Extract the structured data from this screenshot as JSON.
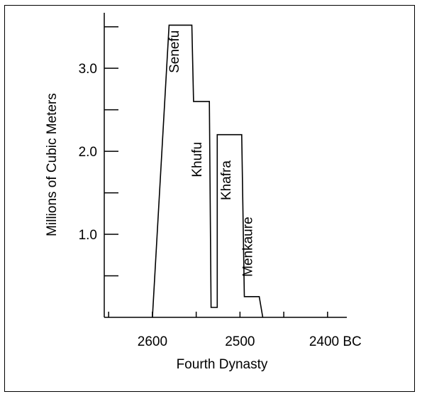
{
  "chart_data": {
    "type": "line",
    "xlabel": "Fourth Dynasty",
    "ylabel": "Millions of Cubic Meters",
    "x_axis": {
      "direction": "reversed",
      "xlim": [
        2655,
        2378
      ],
      "ticks": [
        2650,
        2600,
        2550,
        2500,
        2450,
        2400
      ],
      "tick_labels": [
        {
          "value": 2600,
          "text": "2600"
        },
        {
          "value": 2500,
          "text": "2500"
        },
        {
          "value": 2400,
          "text": "2400 BC"
        }
      ]
    },
    "y_axis": {
      "ylim": [
        0,
        3.6
      ],
      "ticks": [
        0.5,
        1.0,
        1.5,
        2.0,
        2.5,
        3.0,
        3.5
      ],
      "tick_labels": [
        {
          "value": 1.0,
          "text": "1.0"
        },
        {
          "value": 2.0,
          "text": "2.0"
        },
        {
          "value": 3.0,
          "text": "3.0"
        }
      ]
    },
    "series": [
      {
        "points": [
          {
            "x": 2600,
            "y": 0.0
          },
          {
            "x": 2581,
            "y": 3.52
          },
          {
            "x": 2555,
            "y": 3.52
          },
          {
            "x": 2553,
            "y": 2.6
          },
          {
            "x": 2535,
            "y": 2.6
          },
          {
            "x": 2533,
            "y": 0.12
          },
          {
            "x": 2526,
            "y": 0.12
          },
          {
            "x": 2526,
            "y": 2.2
          },
          {
            "x": 2498,
            "y": 2.2
          },
          {
            "x": 2495,
            "y": 0.25
          },
          {
            "x": 2478,
            "y": 0.25
          },
          {
            "x": 2474,
            "y": 0.0
          }
        ]
      }
    ],
    "annotations": [
      {
        "text": "Senefu",
        "x": 2570,
        "y": 3.2
      },
      {
        "text": "Khufu",
        "x": 2544,
        "y": 1.9
      },
      {
        "text": "Khafra",
        "x": 2511,
        "y": 1.65
      },
      {
        "text": "Menkaure",
        "x": 2486,
        "y": 0.85
      }
    ]
  }
}
